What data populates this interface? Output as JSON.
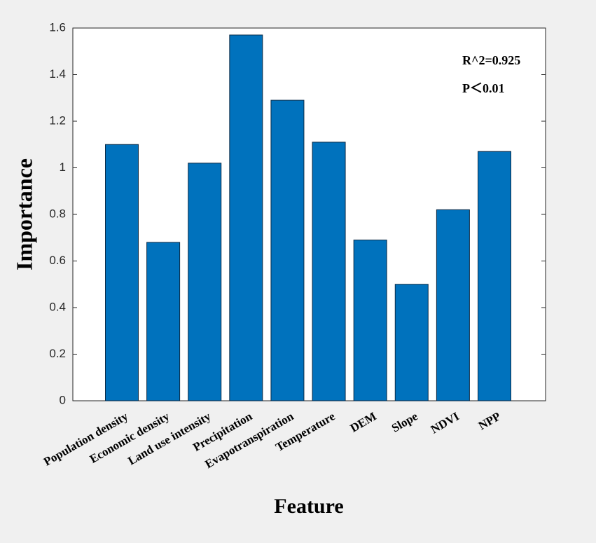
{
  "chart_data": {
    "type": "bar",
    "xlabel": "Feature",
    "ylabel": "Importance",
    "annotations": [
      "R^2=0.925",
      "P＜0.01"
    ],
    "categories": [
      "Population density",
      "Economic density",
      "Land use intensity",
      "Precipitation",
      "Evapotranspiration",
      "Temperature",
      "DEM",
      "Slope",
      "NDVI",
      "NPP"
    ],
    "values": [
      1.1,
      0.68,
      1.02,
      1.57,
      1.29,
      1.11,
      0.69,
      0.5,
      0.82,
      1.07
    ],
    "color": "#0072bd",
    "ylim": [
      0,
      1.6
    ],
    "yticks": [
      0,
      0.2,
      0.4,
      0.6,
      0.8,
      1,
      1.2,
      1.4,
      1.6
    ]
  }
}
